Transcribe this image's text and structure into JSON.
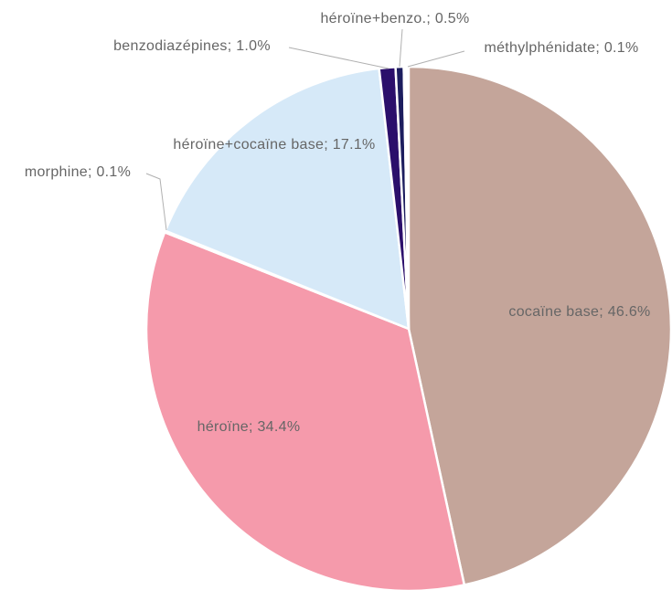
{
  "chart_data": {
    "type": "pie",
    "values": [
      46.6,
      34.4,
      0.1,
      17.1,
      1.0,
      0.5,
      0.1
    ],
    "value_labels": [
      "cocaïne base; 46.6%",
      "héroïne; 34.4%",
      "morphine; 0.1%",
      "héroïne+cocaïne base; 17.1%",
      "benzodiazépines; 1.0%",
      "héroïne+benzo.; 0.5%",
      "méthylphénidate; 0.1%"
    ],
    "colors": [
      "#c4a59a",
      "#f59aab",
      "#9e9e9e",
      "#d6e9f8",
      "#2b0f6b",
      "#1c1d5e",
      "#2a6496"
    ]
  }
}
